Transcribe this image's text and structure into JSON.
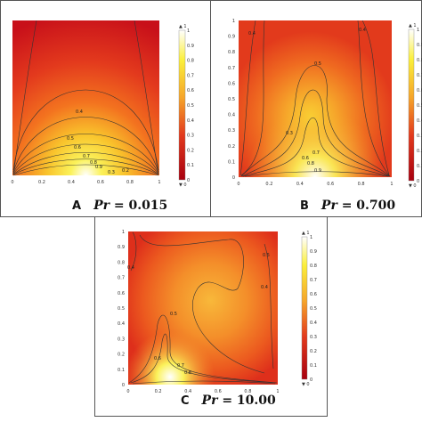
{
  "panels": [
    {
      "letter": "A",
      "caption": "Pr = 0.015",
      "cap_var": "Pr",
      "cap_val": "= 0.015",
      "axis_x_ticks": [
        "0",
        "0.2",
        "0.4",
        "0.6",
        "0.8",
        "1"
      ],
      "axis_y_ticks": [],
      "colorbar_ticks": [
        "1",
        "0.9",
        "0.8",
        "0.7",
        "0.6",
        "0.5",
        "0.4",
        "0.3",
        "0.2",
        "0.1",
        "0"
      ],
      "colorbar_top": "▲ 1",
      "colorbar_bottom": "▼ 0",
      "contour_labels": [
        "0.4",
        "0.5",
        "0.6",
        "0.7",
        "0.8",
        "0.9",
        "0.3",
        "0.2"
      ]
    },
    {
      "letter": "B",
      "caption": "Pr = 0.700",
      "cap_var": "Pr",
      "cap_val": "= 0.700",
      "axis_x_ticks": [
        "0",
        "0.2",
        "0.4",
        "0.6",
        "0.8",
        "1"
      ],
      "axis_y_ticks": [
        "1",
        "0.9",
        "0.8",
        "0.7",
        "0.6",
        "0.5",
        "0.4",
        "0.3",
        "0.2",
        "0.1",
        "0"
      ],
      "colorbar_ticks": [
        "1",
        "0.9",
        "0.8",
        "0.7",
        "0.6",
        "0.5",
        "0.4",
        "0.3",
        "0.2",
        "0.1",
        "0"
      ],
      "colorbar_top": "▲ 1",
      "colorbar_bottom": "▼ 0",
      "contour_labels": [
        "0.4",
        "0.5",
        "0.3",
        "0.4",
        "0.6",
        "0.7",
        "0.8",
        "0.9"
      ]
    },
    {
      "letter": "C",
      "caption": "Pr = 10.00",
      "cap_var": "Pr",
      "cap_val": "= 10.00",
      "axis_x_ticks": [
        "0",
        "0.2",
        "0.4",
        "0.6",
        "0.8",
        "1"
      ],
      "axis_y_ticks": [
        "1",
        "0.9",
        "0.8",
        "0.7",
        "0.6",
        "0.5",
        "0.4",
        "0.3",
        "0.2",
        "0.1",
        "0"
      ],
      "colorbar_ticks": [
        "1",
        "0.9",
        "0.8",
        "0.7",
        "0.6",
        "0.5",
        "0.4",
        "0.3",
        "0.2",
        "0.1",
        "0"
      ],
      "colorbar_top": "▲ 1",
      "colorbar_bottom": "▼ 0",
      "contour_labels": [
        "0.4",
        "0.5",
        "0.5",
        "0.4",
        "0.6",
        "0.7",
        "0.8"
      ]
    }
  ],
  "colors": {
    "hot_red": "#c8101a",
    "orange": "#ef5a1c",
    "amber": "#f7a823",
    "yellow": "#fbef3a",
    "white": "#ffffff",
    "contour": "#333333"
  },
  "chart_data": [
    {
      "type": "heatmap",
      "xlim": [
        0,
        1
      ],
      "ylim": [
        0,
        1
      ],
      "colorbar_range": [
        0,
        1
      ],
      "contour_levels": [
        0.2,
        0.3,
        0.4,
        0.5,
        0.6,
        0.7,
        0.8,
        0.9
      ]
    },
    {
      "type": "heatmap",
      "xlim": [
        0,
        1
      ],
      "ylim": [
        0,
        1
      ],
      "colorbar_range": [
        0,
        1
      ],
      "contour_levels": [
        0.3,
        0.4,
        0.5,
        0.6,
        0.7,
        0.8,
        0.9
      ]
    },
    {
      "type": "heatmap",
      "xlim": [
        0,
        1
      ],
      "ylim": [
        0,
        1
      ],
      "colorbar_range": [
        0,
        1
      ],
      "contour_levels": [
        0.4,
        0.5,
        0.6,
        0.7,
        0.8
      ]
    }
  ]
}
